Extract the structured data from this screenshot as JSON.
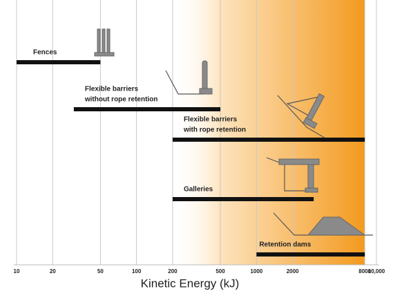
{
  "chart_data": {
    "type": "range-bar",
    "xlabel": "Kinetic Energy (kJ)",
    "log_x": true,
    "xlim": [
      10,
      10000
    ],
    "xticks": [
      10,
      20,
      50,
      100,
      200,
      500,
      1000,
      2000,
      8000,
      {
        "value": 10000,
        "label": "10,000"
      }
    ],
    "grid": true,
    "shaded_range": [
      200,
      8000
    ],
    "shade_color": "#f39a1e",
    "bar_color": "#111111",
    "categories": [
      [
        "Fences"
      ],
      [
        "Flexible barriers",
        "without rope retention"
      ],
      [
        "Flexible barriers",
        "with rope retention"
      ],
      [
        "Galleries"
      ],
      [
        "Retention dams"
      ]
    ],
    "ranges": [
      [
        10,
        50
      ],
      [
        30,
        500
      ],
      [
        200,
        8000
      ],
      [
        200,
        3000
      ],
      [
        1000,
        8000
      ]
    ]
  }
}
